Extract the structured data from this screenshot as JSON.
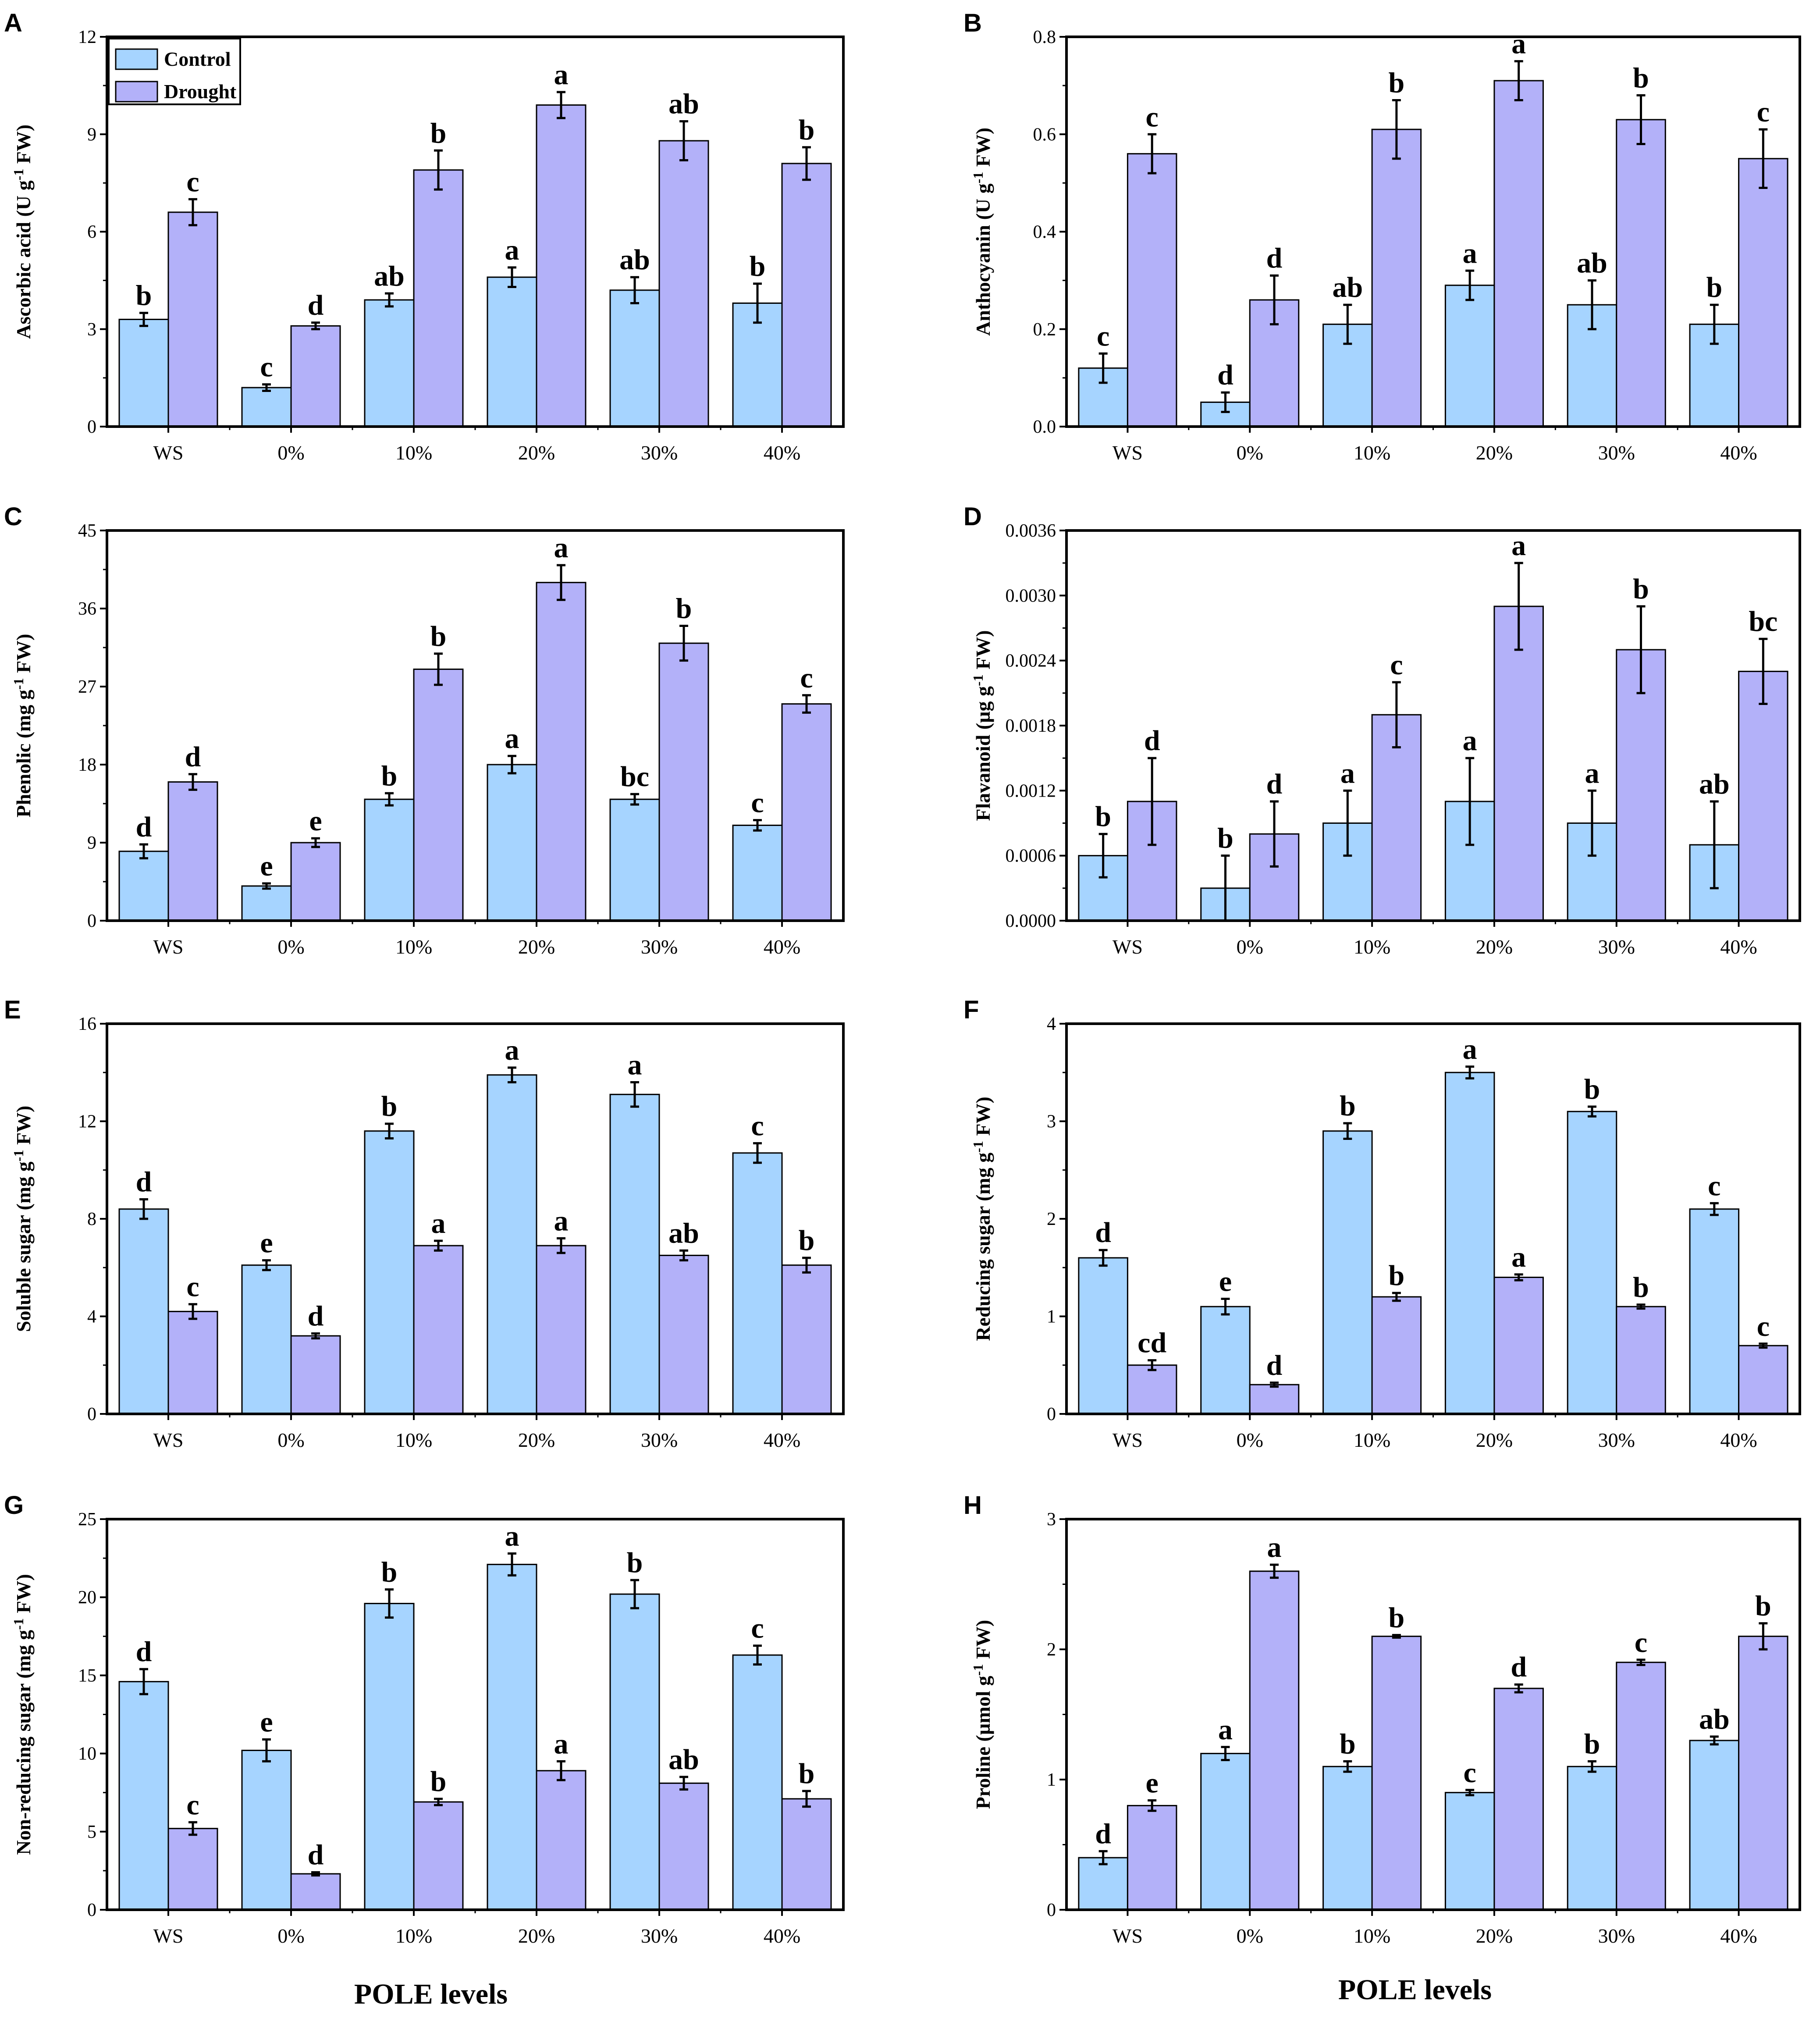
{
  "figure": {
    "xlabel": "POLE levels",
    "categories": [
      "WS",
      "0%",
      "10%",
      "20%",
      "30%",
      "40%"
    ],
    "legend": [
      {
        "name": "Control",
        "color": "#a6d4ff"
      },
      {
        "name": "Drought",
        "color": "#b3b1f9"
      }
    ]
  },
  "chart_data": [
    {
      "panel": "A",
      "type": "bar",
      "ylabel_main": "Ascorbic acid (U g",
      "ylabel_sup": "-1",
      "ylabel_tail": " FW)",
      "ylim": [
        0,
        12
      ],
      "yticks": [
        "0",
        "3",
        "6",
        "9",
        "12"
      ],
      "categories": [
        "WS",
        "0%",
        "10%",
        "20%",
        "30%",
        "40%"
      ],
      "series": [
        {
          "name": "Control",
          "values": [
            3.3,
            1.2,
            3.9,
            4.6,
            4.2,
            3.8
          ],
          "errors": [
            0.2,
            0.1,
            0.2,
            0.3,
            0.4,
            0.6
          ],
          "letters": [
            "b",
            "c",
            "ab",
            "a",
            "ab",
            "b"
          ]
        },
        {
          "name": "Drought",
          "values": [
            6.6,
            3.1,
            7.9,
            9.9,
            8.8,
            8.1
          ],
          "errors": [
            0.4,
            0.1,
            0.6,
            0.4,
            0.6,
            0.5
          ],
          "letters": [
            "c",
            "d",
            "b",
            "a",
            "ab",
            "b"
          ]
        }
      ]
    },
    {
      "panel": "B",
      "type": "bar",
      "ylabel_main": "Anthocyanin (U g",
      "ylabel_sup": "-1",
      "ylabel_tail": " FW)",
      "ylim": [
        0,
        0.8
      ],
      "yticks": [
        "0.0",
        "0.2",
        "0.4",
        "0.6",
        "0.8"
      ],
      "categories": [
        "WS",
        "0%",
        "10%",
        "20%",
        "30%",
        "40%"
      ],
      "series": [
        {
          "name": "Control",
          "values": [
            0.12,
            0.05,
            0.21,
            0.29,
            0.25,
            0.21
          ],
          "errors": [
            0.03,
            0.02,
            0.04,
            0.03,
            0.05,
            0.04
          ],
          "letters": [
            "c",
            "d",
            "ab",
            "a",
            "ab",
            "b"
          ]
        },
        {
          "name": "Drought",
          "values": [
            0.56,
            0.26,
            0.61,
            0.71,
            0.63,
            0.55
          ],
          "errors": [
            0.04,
            0.05,
            0.06,
            0.04,
            0.05,
            0.06
          ],
          "letters": [
            "c",
            "d",
            "b",
            "a",
            "b",
            "c"
          ]
        }
      ]
    },
    {
      "panel": "C",
      "type": "bar",
      "ylabel_main": "Phenolic (mg g",
      "ylabel_sup": "-1",
      "ylabel_tail": " FW)",
      "ylim": [
        0,
        45
      ],
      "yticks": [
        "0",
        "9",
        "18",
        "27",
        "36",
        "45"
      ],
      "categories": [
        "WS",
        "0%",
        "10%",
        "20%",
        "30%",
        "40%"
      ],
      "series": [
        {
          "name": "Control",
          "values": [
            8,
            4,
            14,
            18,
            14,
            11
          ],
          "errors": [
            0.8,
            0.3,
            0.7,
            1.0,
            0.6,
            0.6
          ],
          "letters": [
            "d",
            "e",
            "b",
            "a",
            "bc",
            "c"
          ]
        },
        {
          "name": "Drought",
          "values": [
            16,
            9,
            29,
            39,
            32,
            25
          ],
          "errors": [
            0.9,
            0.5,
            1.8,
            2.0,
            2.0,
            1.0
          ],
          "letters": [
            "d",
            "e",
            "b",
            "a",
            "b",
            "c"
          ]
        }
      ]
    },
    {
      "panel": "D",
      "type": "bar",
      "ylabel_main": "Flavanoid (µg g",
      "ylabel_sup": "-1",
      "ylabel_tail": " FW)",
      "ylim": [
        0,
        0.0036
      ],
      "yticks": [
        "0.0000",
        "0.0006",
        "0.0012",
        "0.0018",
        "0.0024",
        "0.0030",
        "0.0036"
      ],
      "categories": [
        "WS",
        "0%",
        "10%",
        "20%",
        "30%",
        "40%"
      ],
      "series": [
        {
          "name": "Control",
          "values": [
            0.0006,
            0.0003,
            0.0009,
            0.0011,
            0.0009,
            0.0007
          ],
          "errors": [
            0.0002,
            0.0003,
            0.0003,
            0.0004,
            0.0003,
            0.0004
          ],
          "letters": [
            "b",
            "b",
            "a",
            "a",
            "a",
            "ab"
          ]
        },
        {
          "name": "Drought",
          "values": [
            0.0011,
            0.0008,
            0.0019,
            0.0029,
            0.0025,
            0.0023
          ],
          "errors": [
            0.0004,
            0.0003,
            0.0003,
            0.0004,
            0.0004,
            0.0003
          ],
          "letters": [
            "d",
            "d",
            "c",
            "a",
            "b",
            "bc"
          ]
        }
      ]
    },
    {
      "panel": "E",
      "type": "bar",
      "ylabel_main": "Soluble sugar (mg g",
      "ylabel_sup": "-1",
      "ylabel_tail": " FW)",
      "ylim": [
        0,
        16
      ],
      "yticks": [
        "0",
        "4",
        "8",
        "12",
        "16"
      ],
      "categories": [
        "WS",
        "0%",
        "10%",
        "20%",
        "30%",
        "40%"
      ],
      "series": [
        {
          "name": "Control",
          "values": [
            8.4,
            6.1,
            11.6,
            13.9,
            13.1,
            10.7
          ],
          "errors": [
            0.4,
            0.2,
            0.3,
            0.3,
            0.5,
            0.4
          ],
          "letters": [
            "d",
            "e",
            "b",
            "a",
            "a",
            "c"
          ]
        },
        {
          "name": "Drought",
          "values": [
            4.2,
            3.2,
            6.9,
            6.9,
            6.5,
            6.1
          ],
          "errors": [
            0.3,
            0.1,
            0.2,
            0.3,
            0.2,
            0.3
          ],
          "letters": [
            "c",
            "d",
            "a",
            "a",
            "ab",
            "b"
          ]
        }
      ]
    },
    {
      "panel": "F",
      "type": "bar",
      "ylabel_main": "Reducing sugar (mg g",
      "ylabel_sup": "-1",
      "ylabel_tail": " FW)",
      "ylim": [
        0,
        4
      ],
      "yticks": [
        "0",
        "1",
        "2",
        "3",
        "4"
      ],
      "categories": [
        "WS",
        "0%",
        "10%",
        "20%",
        "30%",
        "40%"
      ],
      "series": [
        {
          "name": "Control",
          "values": [
            1.6,
            1.1,
            2.9,
            3.5,
            3.1,
            2.1
          ],
          "errors": [
            0.08,
            0.08,
            0.08,
            0.06,
            0.05,
            0.06
          ],
          "letters": [
            "d",
            "e",
            "b",
            "a",
            "b",
            "c"
          ]
        },
        {
          "name": "Drought",
          "values": [
            0.5,
            0.3,
            1.2,
            1.4,
            1.1,
            0.7
          ],
          "errors": [
            0.05,
            0.02,
            0.04,
            0.03,
            0.02,
            0.02
          ],
          "letters": [
            "cd",
            "d",
            "b",
            "a",
            "b",
            "c"
          ]
        }
      ]
    },
    {
      "panel": "G",
      "type": "bar",
      "ylabel_main": "Non-reducing sugar (mg g",
      "ylabel_sup": "-1",
      "ylabel_tail": " FW)",
      "ylim": [
        0,
        25
      ],
      "yticks": [
        "0",
        "5",
        "10",
        "15",
        "20",
        "25"
      ],
      "categories": [
        "WS",
        "0%",
        "10%",
        "20%",
        "30%",
        "40%"
      ],
      "series": [
        {
          "name": "Control",
          "values": [
            14.6,
            10.2,
            19.6,
            22.1,
            20.2,
            16.3
          ],
          "errors": [
            0.8,
            0.7,
            0.9,
            0.7,
            0.9,
            0.6
          ],
          "letters": [
            "d",
            "e",
            "b",
            "a",
            "b",
            "c"
          ]
        },
        {
          "name": "Drought",
          "values": [
            5.2,
            2.3,
            6.9,
            8.9,
            8.1,
            7.1
          ],
          "errors": [
            0.4,
            0.1,
            0.2,
            0.6,
            0.4,
            0.5
          ],
          "letters": [
            "c",
            "d",
            "b",
            "a",
            "ab",
            "b"
          ]
        }
      ]
    },
    {
      "panel": "H",
      "type": "bar",
      "ylabel_main": "Proline (µmol g",
      "ylabel_sup": "-1",
      "ylabel_tail": " FW)",
      "ylim": [
        0,
        3
      ],
      "yticks": [
        "0",
        "1",
        "2",
        "3"
      ],
      "categories": [
        "WS",
        "0%",
        "10%",
        "20%",
        "30%",
        "40%"
      ],
      "series": [
        {
          "name": "Control",
          "values": [
            0.4,
            1.2,
            1.1,
            0.9,
            1.1,
            1.3
          ],
          "errors": [
            0.05,
            0.05,
            0.04,
            0.02,
            0.04,
            0.03
          ],
          "letters": [
            "d",
            "a",
            "b",
            "c",
            "b",
            "ab"
          ]
        },
        {
          "name": "Drought",
          "values": [
            0.8,
            2.6,
            2.1,
            1.7,
            1.9,
            2.1
          ],
          "errors": [
            0.04,
            0.05,
            0.01,
            0.03,
            0.02,
            0.1
          ],
          "letters": [
            "e",
            "a",
            "b",
            "d",
            "c",
            "b"
          ]
        }
      ]
    }
  ]
}
